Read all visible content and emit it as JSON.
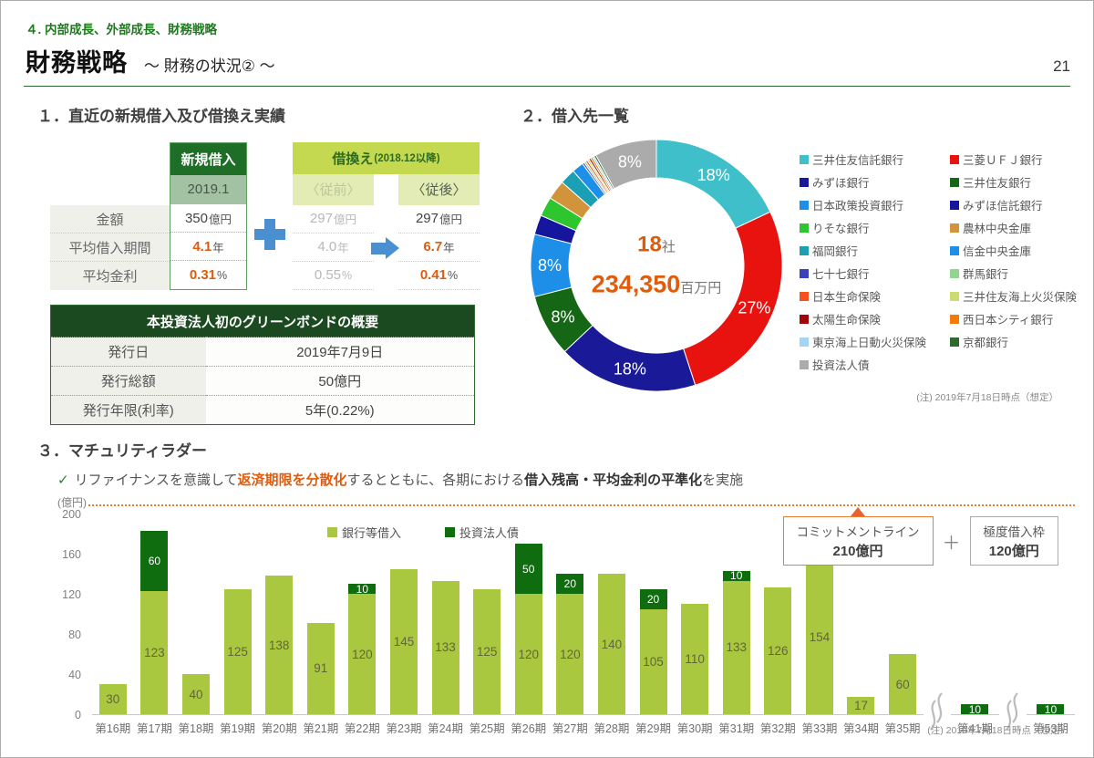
{
  "page": {
    "eyebrow": "４. 内部成長、外部成長、財務戦略",
    "title": "財務戦略",
    "subtitle": "～ 財務の状況② ～",
    "page_number": "21"
  },
  "section1": {
    "title": "１．直近の新規借入及び借換え実績",
    "loan_table": {
      "new_header": "新規借入",
      "new_period": "2019.1",
      "refi_header": "借換え",
      "refi_header_paren": "(2018.12以降)",
      "before_label": "〈従前〉",
      "after_label": "〈従後〉",
      "rows": [
        {
          "label": "金額",
          "new_value": "350",
          "new_unit": "億円",
          "before_value": "297",
          "before_unit": "億円",
          "after_value": "297",
          "after_unit": "億円"
        },
        {
          "label": "平均借入期間",
          "new_value": "4.1",
          "new_unit": "年",
          "before_value": "4.0",
          "before_unit": "年",
          "after_value": "6.7",
          "after_unit": "年"
        },
        {
          "label": "平均金利",
          "new_value": "0.31",
          "new_unit": "%",
          "before_value": "0.55",
          "before_unit": "%",
          "after_value": "0.41",
          "after_unit": "%"
        }
      ]
    },
    "bond_table": {
      "title": "本投資法人初のグリーンボンドの概要",
      "rows": [
        {
          "label": "発行日",
          "value": "2019年7月9日"
        },
        {
          "label": "発行総額",
          "value": "50億円"
        },
        {
          "label": "発行年限(利率)",
          "value": "5年(0.22%)"
        }
      ]
    }
  },
  "section2": {
    "title": "２．借入先一覧",
    "center_count": "18",
    "center_count_unit": "社",
    "center_amount": "234,350",
    "center_amount_unit": "百万円",
    "note": "(注) 2019年7月18日時点（想定）"
  },
  "section3": {
    "title": "３．マチュリティラダー",
    "check_parts": {
      "t1": "リファイナンスを意識して",
      "t2": "返済期限を分散化",
      "t3": "するとともに、各期における",
      "t4": "借入残高・平均金利の平準化",
      "t5": "を実施"
    },
    "ylabel": "(億円)",
    "commitment_label": "コミットメントライン",
    "commitment_value": "210億円",
    "plus_sign": "＋",
    "credit_label": "極度借入枠",
    "credit_value": "120億円",
    "note": "(注) 2019年7月18日時点（想定）"
  },
  "chart_data": [
    {
      "type": "pie",
      "title": "借入先一覧",
      "center": {
        "count": 18,
        "count_unit": "社",
        "amount": "234,350",
        "amount_unit": "百万円"
      },
      "legend_position": "right",
      "series": [
        {
          "name": "三井住友信託銀行",
          "value": 18,
          "label": "18%",
          "color": "#3FBFC9"
        },
        {
          "name": "三菱ＵＦＪ銀行",
          "value": 27,
          "label": "27%",
          "color": "#E8120F"
        },
        {
          "name": "みずほ銀行",
          "value": 18,
          "label": "18%",
          "color": "#1A1A99"
        },
        {
          "name": "三井住友銀行",
          "value": 8,
          "label": "8%",
          "color": "#156615"
        },
        {
          "name": "日本政策投資銀行",
          "value": 8,
          "label": "8%",
          "color": "#1E8FE8"
        },
        {
          "name": "みずほ信託銀行",
          "value": 2.5,
          "label": "",
          "color": "#15159E"
        },
        {
          "name": "りそな銀行",
          "value": 2.5,
          "label": "",
          "color": "#2EC62E"
        },
        {
          "name": "農林中央金庫",
          "value": 2.5,
          "label": "",
          "color": "#D2943B"
        },
        {
          "name": "福岡銀行",
          "value": 2.0,
          "label": "",
          "color": "#1A9FB4"
        },
        {
          "name": "信金中央金庫",
          "value": 1.5,
          "label": "",
          "color": "#1E8FE8"
        },
        {
          "name": "七十七銀行",
          "value": 0.25,
          "label": "",
          "color": "#3944BC"
        },
        {
          "name": "群馬銀行",
          "value": 0.25,
          "label": "",
          "color": "#90D690"
        },
        {
          "name": "日本生命保険",
          "value": 0.25,
          "label": "",
          "color": "#F5501E"
        },
        {
          "name": "三井住友海上火災保険",
          "value": 0.25,
          "label": "",
          "color": "#C9DC6E"
        },
        {
          "name": "太陽生命保険",
          "value": 0.25,
          "label": "",
          "color": "#A00606"
        },
        {
          "name": "西日本シティ銀行",
          "value": 0.25,
          "label": "",
          "color": "#F57C00"
        },
        {
          "name": "東京海上日動火災保険",
          "value": 0.25,
          "label": "",
          "color": "#A3D4F7"
        },
        {
          "name": "京都銀行",
          "value": 0.25,
          "label": "",
          "color": "#2D6A2D"
        },
        {
          "name": "投資法人債",
          "value": 8,
          "label": "8%",
          "color": "#ABABAB"
        }
      ]
    },
    {
      "type": "bar",
      "stacked": true,
      "ylabel": "(億円)",
      "ylim": [
        0,
        200
      ],
      "yticks": [
        0,
        40,
        80,
        120,
        160,
        200
      ],
      "grid": false,
      "legend_position": "top-center",
      "series_names": [
        "銀行等借入",
        "投資法人債"
      ],
      "series_colors": [
        "#A9C83F",
        "#0F6C0F"
      ],
      "threshold": {
        "value": 210,
        "label": "コミットメントライン 210億円"
      },
      "bars": [
        {
          "label": "第16期",
          "bank": 30,
          "bond": 0
        },
        {
          "label": "第17期",
          "bank": 123,
          "bond": 60
        },
        {
          "label": "第18期",
          "bank": 40,
          "bond": 0
        },
        {
          "label": "第19期",
          "bank": 125,
          "bond": 0
        },
        {
          "label": "第20期",
          "bank": 138,
          "bond": 0
        },
        {
          "label": "第21期",
          "bank": 91,
          "bond": 0
        },
        {
          "label": "第22期",
          "bank": 120,
          "bond": 10
        },
        {
          "label": "第23期",
          "bank": 145,
          "bond": 0
        },
        {
          "label": "第24期",
          "bank": 133,
          "bond": 0
        },
        {
          "label": "第25期",
          "bank": 125,
          "bond": 0
        },
        {
          "label": "第26期",
          "bank": 120,
          "bond": 50
        },
        {
          "label": "第27期",
          "bank": 120,
          "bond": 20
        },
        {
          "label": "第28期",
          "bank": 140,
          "bond": 0
        },
        {
          "label": "第29期",
          "bank": 105,
          "bond": 20
        },
        {
          "label": "第30期",
          "bank": 110,
          "bond": 0
        },
        {
          "label": "第31期",
          "bank": 133,
          "bond": 10
        },
        {
          "label": "第32期",
          "bank": 126,
          "bond": 0
        },
        {
          "label": "第33期",
          "bank": 154,
          "bond": 0
        },
        {
          "label": "第34期",
          "bank": 17,
          "bond": 0
        },
        {
          "label": "第35期",
          "bank": 60,
          "bond": 0
        },
        {
          "label": "第41期",
          "bank": 0,
          "bond": 10,
          "break_before": true
        },
        {
          "label": "第53期",
          "bank": 0,
          "bond": 10,
          "break_before": true
        }
      ]
    }
  ]
}
